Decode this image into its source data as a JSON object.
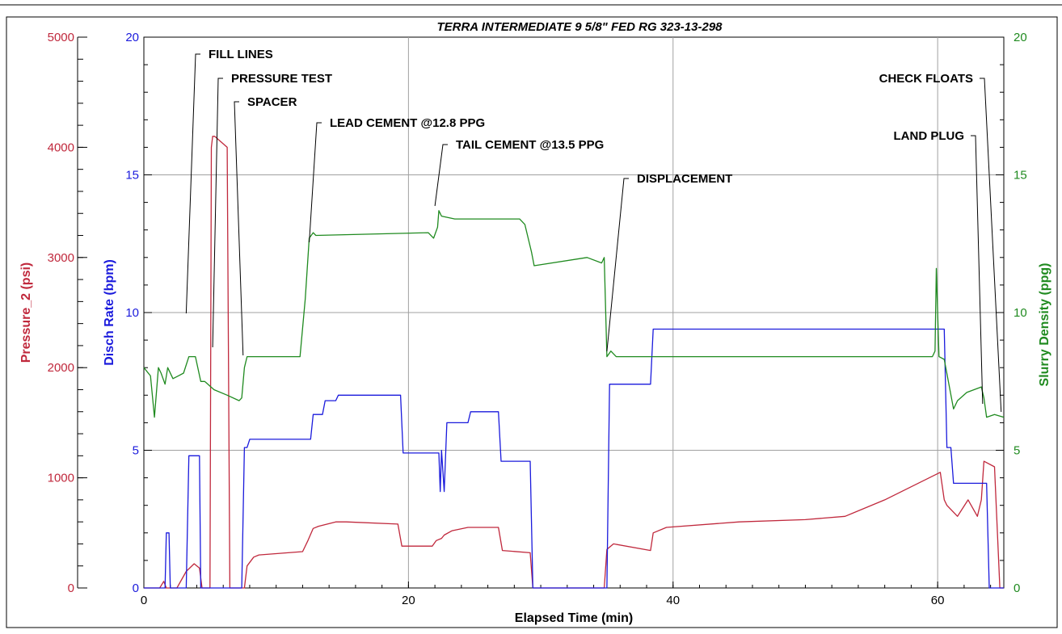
{
  "chart_data": {
    "type": "line",
    "title": "TERRA INTERMEDIATE 9 5/8\" FED RG 323-13-298",
    "xlabel": "Elapsed Time (min)",
    "xlim": [
      0,
      65
    ],
    "x_ticks": [
      "0",
      "20",
      "40",
      "60"
    ],
    "x_tick_values": [
      0,
      20,
      40,
      60
    ],
    "axes": {
      "pressure": {
        "label": "Pressure_2 (psi)",
        "color": "#c0283c",
        "ylim": [
          0,
          5000
        ],
        "ticks": [
          "0",
          "1000",
          "2000",
          "3000",
          "4000",
          "5000"
        ],
        "tick_values": [
          0,
          1000,
          2000,
          3000,
          4000,
          5000
        ]
      },
      "rate": {
        "label": "Disch Rate (bpm)",
        "color": "#1a1adc",
        "ylim": [
          0,
          20
        ],
        "ticks": [
          "0",
          "5",
          "10",
          "15",
          "20"
        ],
        "tick_values": [
          0,
          5,
          10,
          15,
          20
        ]
      },
      "density": {
        "label": "Slurry Density (ppg)",
        "color": "#1f8a1f",
        "ylim": [
          0,
          20
        ],
        "ticks": [
          "0",
          "5",
          "10",
          "15",
          "20"
        ],
        "tick_values": [
          0,
          5,
          10,
          15,
          20
        ]
      }
    },
    "grid": true,
    "series": [
      {
        "name": "Pressure_2 (psi)",
        "axis": "pressure",
        "x": [
          0,
          1.2,
          1.5,
          1.7,
          2.5,
          3.2,
          3.8,
          4.2,
          4.4,
          5,
          5.1,
          5.2,
          5.35,
          6.3,
          6.5,
          6.7,
          7.0,
          7.6,
          7.8,
          8.3,
          8.7,
          12,
          12.4,
          12.8,
          13.2,
          14.5,
          15.3,
          19.2,
          19.5,
          21.8,
          22.1,
          22.5,
          22.7,
          23.3,
          24.5,
          26.8,
          27.1,
          29.2,
          29.4,
          34.8,
          35.0,
          35.5,
          38.3,
          38.5,
          39.5,
          45,
          50,
          53,
          56,
          60.2,
          60.5,
          60.7,
          61.5,
          62.3,
          63,
          63.3,
          63.5,
          64.3,
          64.7,
          65
        ],
        "y": [
          0,
          0,
          60,
          0,
          0,
          150,
          220,
          180,
          0,
          0,
          4000,
          4100,
          4100,
          4000,
          0,
          0,
          0,
          0,
          200,
          280,
          300,
          330,
          430,
          540,
          560,
          600,
          600,
          580,
          380,
          380,
          430,
          450,
          480,
          520,
          550,
          550,
          340,
          320,
          0,
          0,
          350,
          400,
          340,
          500,
          550,
          600,
          620,
          650,
          800,
          1050,
          800,
          750,
          650,
          800,
          650,
          800,
          1150,
          1100,
          0,
          0
        ]
      },
      {
        "name": "Disch Rate (bpm)",
        "axis": "rate",
        "x": [
          0,
          1.6,
          1.7,
          1.9,
          2.0,
          3.2,
          3.4,
          4.2,
          4.3,
          5.2,
          5.3,
          7.4,
          7.6,
          7.8,
          8.0,
          8.2,
          12.6,
          12.8,
          13.5,
          13.7,
          14.5,
          14.7,
          19.4,
          19.6,
          22.3,
          22.4,
          22.5,
          22.7,
          22.9,
          23.5,
          24.5,
          24.7,
          26.8,
          27.0,
          29.2,
          29.4,
          35.0,
          35.2,
          38.3,
          38.5,
          60.5,
          60.7,
          61.0,
          61.2,
          63.7,
          63.9,
          65
        ],
        "y": [
          0,
          0,
          2,
          2,
          0,
          0,
          4.8,
          4.8,
          0,
          0,
          0,
          0,
          5.1,
          5.1,
          5.4,
          5.4,
          5.4,
          6.3,
          6.3,
          6.8,
          6.8,
          7.0,
          7.0,
          4.9,
          4.9,
          3.5,
          5.0,
          3.5,
          6.0,
          6.0,
          6.0,
          6.4,
          6.4,
          4.6,
          4.6,
          0,
          0,
          7.4,
          7.4,
          9.4,
          9.4,
          5.1,
          5.1,
          3.8,
          3.8,
          0,
          0
        ]
      },
      {
        "name": "Slurry Density (ppg)",
        "axis": "density",
        "x": [
          0,
          0.5,
          0.8,
          1.1,
          1.3,
          1.6,
          1.8,
          2.2,
          2.6,
          3.0,
          3.4,
          3.9,
          4.3,
          4.6,
          5.3,
          6.3,
          7.2,
          7.4,
          7.6,
          7.8,
          8.2,
          11.8,
          12.2,
          12.5,
          12.8,
          13.0,
          21.5,
          21.9,
          22.2,
          22.3,
          22.5,
          23.5,
          28.4,
          28.8,
          29.3,
          29.5,
          33.5,
          34.6,
          34.8,
          35.0,
          35.3,
          35.7,
          36.5,
          50,
          59.6,
          59.8,
          59.9,
          60.1,
          60.5,
          61.2,
          61.5,
          62.2,
          63.3,
          63.5,
          63.7,
          64.3,
          65
        ],
        "y": [
          8.0,
          7.7,
          6.2,
          8.0,
          7.8,
          7.4,
          8.0,
          7.6,
          7.7,
          7.8,
          8.4,
          8.4,
          7.5,
          7.5,
          7.2,
          7.0,
          6.8,
          6.9,
          8.0,
          8.4,
          8.4,
          8.4,
          10.5,
          12.7,
          12.9,
          12.8,
          12.9,
          12.7,
          13.1,
          13.7,
          13.5,
          13.4,
          13.4,
          13.2,
          12.2,
          11.7,
          12.0,
          11.8,
          12.0,
          8.4,
          8.6,
          8.4,
          8.4,
          8.4,
          8.4,
          8.6,
          11.6,
          8.4,
          8.3,
          6.5,
          6.8,
          7.1,
          7.3,
          6.9,
          6.2,
          6.3,
          6.2
        ]
      }
    ],
    "annotations": [
      {
        "text": "FILL LINES",
        "x": 3.2
      },
      {
        "text": "PRESSURE TEST",
        "x": 5.2
      },
      {
        "text": "SPACER",
        "x": 7.5
      },
      {
        "text": "LEAD CEMENT @12.8 PPG",
        "x": 12.5
      },
      {
        "text": "TAIL CEMENT @13.5 PPG",
        "x": 22.0
      },
      {
        "text": "DISPLACEMENT",
        "x": 35.0
      },
      {
        "text": "CHECK FLOATS",
        "x": 64.8
      },
      {
        "text": "LAND PLUG",
        "x": 63.4
      }
    ]
  }
}
